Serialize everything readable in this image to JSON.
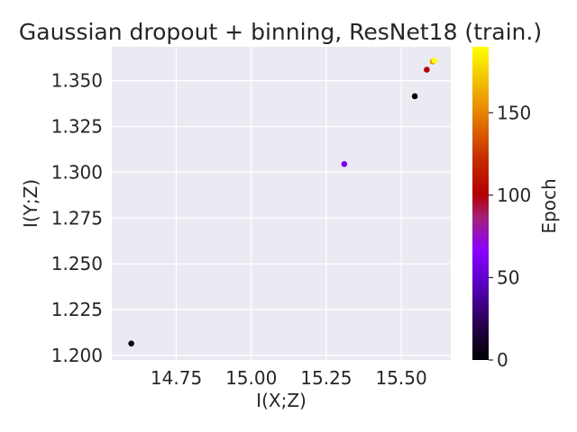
{
  "chart_data": {
    "type": "scatter",
    "title": "Gaussian dropout + binning, ResNet18 (train.)",
    "xlabel": "I(X;Z)",
    "ylabel": "I(Y;Z)",
    "xlim": [
      14.535,
      15.665
    ],
    "ylim": [
      1.1975,
      1.3685
    ],
    "xticks": [
      14.75,
      15.0,
      15.25,
      15.5
    ],
    "xtick_labels": [
      "14.75",
      "15.00",
      "15.25",
      "15.50"
    ],
    "yticks": [
      1.2,
      1.225,
      1.25,
      1.275,
      1.3,
      1.325,
      1.35
    ],
    "ytick_labels": [
      "1.200",
      "1.225",
      "1.250",
      "1.275",
      "1.300",
      "1.325",
      "1.350"
    ],
    "grid": true,
    "points": [
      {
        "x": 14.6,
        "y": 1.2065,
        "epoch": 5
      },
      {
        "x": 15.31,
        "y": 1.3045,
        "epoch": 60
      },
      {
        "x": 15.545,
        "y": 1.3415,
        "epoch": 0
      },
      {
        "x": 15.585,
        "y": 1.356,
        "epoch": 100
      },
      {
        "x": 15.605,
        "y": 1.3605,
        "epoch": 150
      },
      {
        "x": 15.61,
        "y": 1.361,
        "epoch": 190
      }
    ],
    "colorbar": {
      "label": "Epoch",
      "min": 0,
      "max": 190,
      "ticks": [
        0,
        50,
        100,
        150
      ],
      "tick_labels": [
        "0",
        "50",
        "100",
        "150"
      ],
      "colormap": "gnuplot"
    },
    "colors": {
      "plot_background": "#eaeaf2",
      "grid": "#ffffff",
      "text": "#262626"
    }
  }
}
